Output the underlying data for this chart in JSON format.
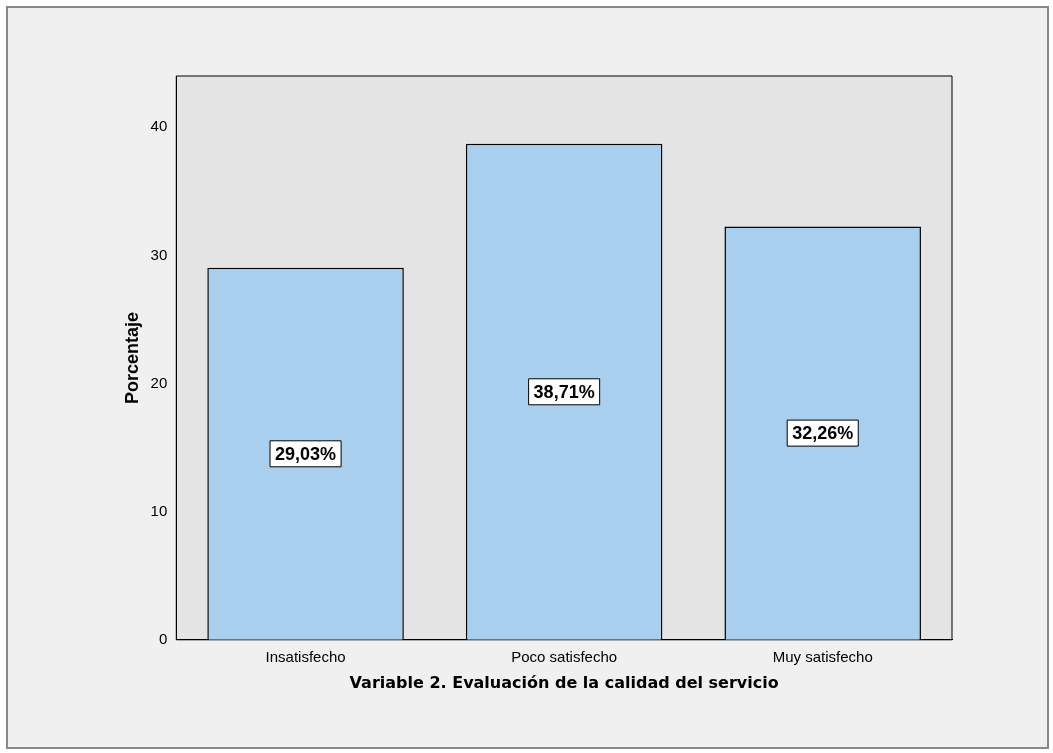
{
  "chart_data": {
    "type": "bar",
    "xlabel": "Variable 2. Evaluación de la calidad del servicio",
    "ylabel": "Porcentaje",
    "categories": [
      "Insatisfecho",
      "Poco satisfecho",
      "Muy satisfecho"
    ],
    "values": [
      29.03,
      38.71,
      32.26
    ],
    "value_labels": [
      "29,03%",
      "38,71%",
      "32,26%"
    ],
    "color": "#a9cfee",
    "ylim": [
      0,
      44
    ],
    "yticks": [
      0,
      10,
      20,
      30,
      40
    ],
    "grid": false,
    "legend": false
  }
}
